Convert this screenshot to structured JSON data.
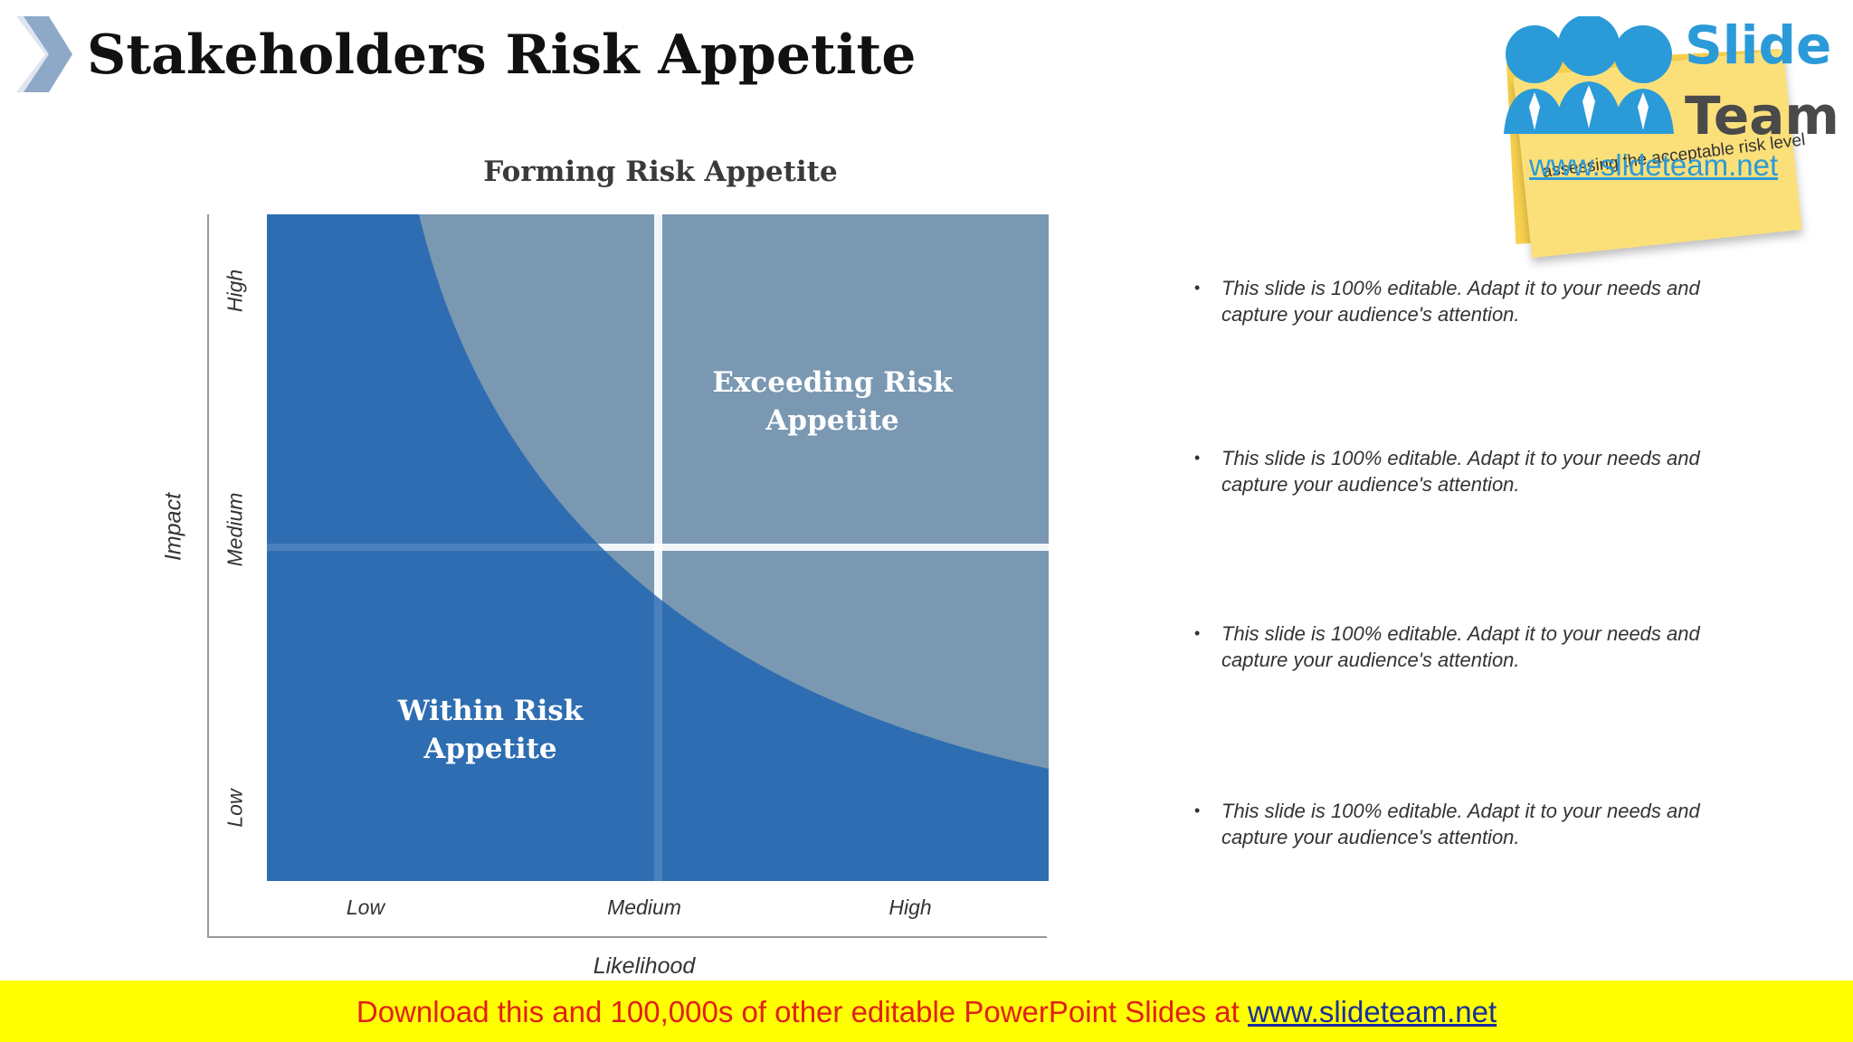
{
  "header": {
    "title": "Stakeholders Risk Appetite"
  },
  "chart": {
    "title": "Forming Risk Appetite",
    "x_axis_label": "Likelihood",
    "y_axis_label": "Impact",
    "x_ticks": [
      "Low",
      "Medium",
      "High"
    ],
    "y_ticks": [
      "High",
      "Medium",
      "Low"
    ],
    "regions": {
      "exceeding": "Exceeding Risk Appetite",
      "within": "Within Risk Appetite"
    },
    "colors": {
      "within": "#2e6db1",
      "exceeding": "#7a98b2"
    }
  },
  "bullets": [
    "This slide is 100% editable. Adapt it to your needs and capture your audience's attention.",
    "This slide is 100% editable. Adapt it to your needs and capture your audience's attention.",
    "This slide is 100% editable. Adapt it to your needs and capture your audience's attention.",
    "This slide is 100% editable. Adapt it to your needs and capture your audience's attention."
  ],
  "logo": {
    "word1": "Slide",
    "word2": "Team",
    "url": "www.slideteam.net",
    "note_text": "assessing the acceptable risk level"
  },
  "banner": {
    "text": "Download this and 100,000s of other editable PowerPoint Slides at ",
    "link": "www.slideteam.net"
  }
}
